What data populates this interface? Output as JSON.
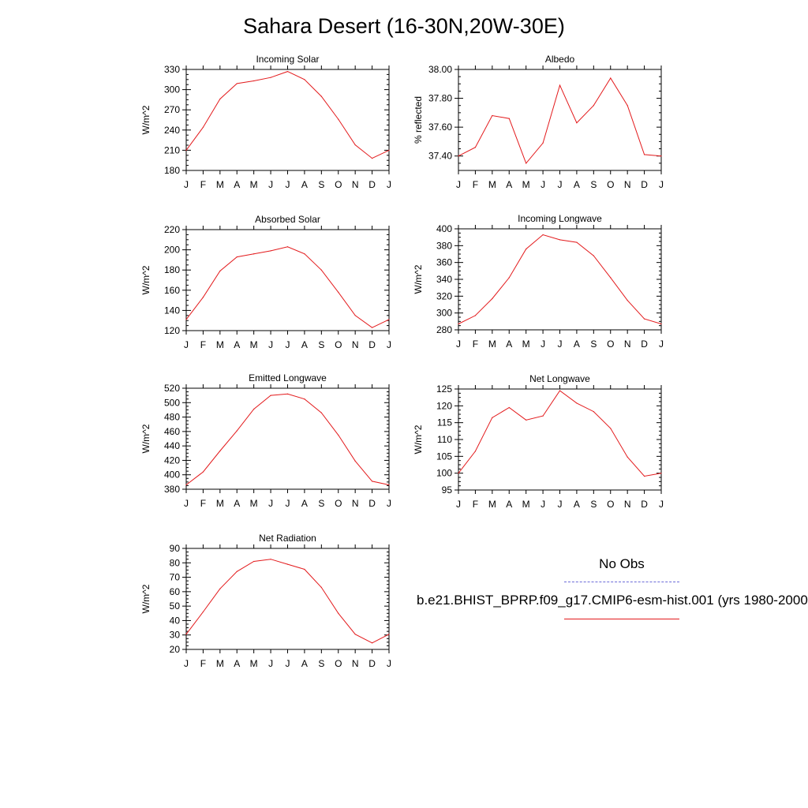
{
  "page": {
    "title": "Sahara Desert (16-30N,20W-30E)"
  },
  "legend": {
    "obs_label": "No Obs",
    "obs_color": "#6b6bd8",
    "model_label": "b.e21.BHIST_BPRP.f09_g17.CMIP6-esm-hist.001 (yrs 1980-2000)",
    "model_color": "#e31a1c"
  },
  "chart_data": [
    {
      "type": "line",
      "title": "Incoming Solar",
      "ylabel": "W/m^2",
      "categories": [
        "J",
        "F",
        "M",
        "A",
        "M",
        "J",
        "J",
        "A",
        "S",
        "O",
        "N",
        "D",
        "J"
      ],
      "ylim": [
        180,
        330
      ],
      "yticks": [
        180,
        210,
        240,
        270,
        300,
        330
      ],
      "ytick_labels": [
        "180",
        "210",
        "240",
        "270",
        "300",
        "330"
      ],
      "series": [
        {
          "values": [
            210,
            244,
            286,
            309,
            313,
            318,
            327,
            315,
            290,
            256,
            218,
            198,
            210
          ],
          "color": "#e31a1c"
        }
      ]
    },
    {
      "type": "line",
      "title": "Albedo",
      "ylabel": "% reflected",
      "categories": [
        "J",
        "F",
        "M",
        "A",
        "M",
        "J",
        "J",
        "A",
        "S",
        "O",
        "N",
        "D",
        "J"
      ],
      "ylim": [
        37.3,
        38.0
      ],
      "yticks": [
        37.4,
        37.6,
        37.8,
        38.0
      ],
      "ytick_labels": [
        "37.40",
        "37.60",
        "37.80",
        "38.00"
      ],
      "series": [
        {
          "values": [
            37.4,
            37.46,
            37.68,
            37.66,
            37.35,
            37.49,
            37.89,
            37.63,
            37.75,
            37.94,
            37.75,
            37.41,
            37.4
          ],
          "color": "#e31a1c"
        }
      ]
    },
    {
      "type": "line",
      "title": "Absorbed Solar",
      "ylabel": "W/m^2",
      "categories": [
        "J",
        "F",
        "M",
        "A",
        "M",
        "J",
        "J",
        "A",
        "S",
        "O",
        "N",
        "D",
        "J"
      ],
      "ylim": [
        120,
        220
      ],
      "yticks": [
        120,
        140,
        160,
        180,
        200,
        220
      ],
      "ytick_labels": [
        "120",
        "140",
        "160",
        "180",
        "200",
        "220"
      ],
      "series": [
        {
          "values": [
            131,
            153,
            179,
            193,
            196,
            199,
            203,
            196,
            180,
            158,
            135,
            123,
            131
          ],
          "color": "#e31a1c"
        }
      ]
    },
    {
      "type": "line",
      "title": "Incoming Longwave",
      "ylabel": "W/m^2",
      "categories": [
        "J",
        "F",
        "M",
        "A",
        "M",
        "J",
        "J",
        "A",
        "S",
        "O",
        "N",
        "D",
        "J"
      ],
      "ylim": [
        280,
        400
      ],
      "yticks": [
        280,
        300,
        320,
        340,
        360,
        380,
        400
      ],
      "ytick_labels": [
        "280",
        "300",
        "320",
        "340",
        "360",
        "380",
        "400"
      ],
      "series": [
        {
          "values": [
            287,
            297,
            317,
            342,
            376,
            393,
            387,
            384,
            368,
            342,
            315,
            293,
            287
          ],
          "color": "#e31a1c"
        }
      ]
    },
    {
      "type": "line",
      "title": "Emitted Longwave",
      "ylabel": "W/m^2",
      "categories": [
        "J",
        "F",
        "M",
        "A",
        "M",
        "J",
        "J",
        "A",
        "S",
        "O",
        "N",
        "D",
        "J"
      ],
      "ylim": [
        380,
        520
      ],
      "yticks": [
        380,
        400,
        420,
        440,
        460,
        480,
        500,
        520
      ],
      "ytick_labels": [
        "380",
        "400",
        "420",
        "440",
        "460",
        "480",
        "500",
        "520"
      ],
      "series": [
        {
          "values": [
            386,
            404,
            433,
            461,
            491,
            510,
            512,
            505,
            486,
            455,
            419,
            391,
            386
          ],
          "color": "#e31a1c"
        }
      ]
    },
    {
      "type": "line",
      "title": "Net Longwave",
      "ylabel": "W/m^2",
      "categories": [
        "J",
        "F",
        "M",
        "A",
        "M",
        "J",
        "J",
        "A",
        "S",
        "O",
        "N",
        "D",
        "J"
      ],
      "ylim": [
        95,
        125
      ],
      "yticks": [
        95,
        100,
        105,
        110,
        115,
        120,
        125
      ],
      "ytick_labels": [
        "95",
        "100",
        "105",
        "110",
        "115",
        "120",
        "125"
      ],
      "series": [
        {
          "values": [
            100,
            106.5,
            116.5,
            119.5,
            115.8,
            117,
            124.5,
            120.8,
            118.3,
            113.3,
            104.8,
            99.1,
            100
          ],
          "color": "#e31a1c"
        }
      ]
    },
    {
      "type": "line",
      "title": "Net Radiation",
      "ylabel": "W/m^2",
      "categories": [
        "J",
        "F",
        "M",
        "A",
        "M",
        "J",
        "J",
        "A",
        "S",
        "O",
        "N",
        "D",
        "J"
      ],
      "ylim": [
        20,
        90
      ],
      "yticks": [
        20,
        30,
        40,
        50,
        60,
        70,
        80,
        90
      ],
      "ytick_labels": [
        "20",
        "30",
        "40",
        "50",
        "60",
        "70",
        "80",
        "90"
      ],
      "series": [
        {
          "values": [
            30.5,
            46,
            62,
            74,
            81,
            82.5,
            79,
            75.5,
            63,
            45,
            30.5,
            24.5,
            30.5
          ],
          "color": "#e31a1c"
        }
      ]
    }
  ]
}
